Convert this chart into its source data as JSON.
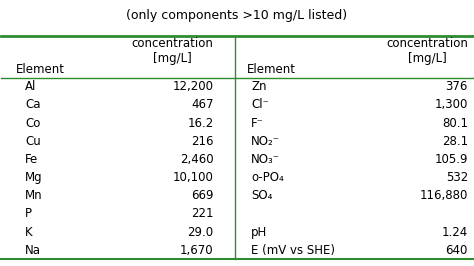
{
  "title": "(only components >10 mg/L listed)",
  "title_fontsize": 9,
  "green_color": "#2e8b2e",
  "left_elements": [
    "Al",
    "Ca",
    "Co",
    "Cu",
    "Fe",
    "Mg",
    "Mn",
    "P",
    "K",
    "Na"
  ],
  "left_values": [
    "12,200",
    "467",
    "16.2",
    "216",
    "2,460",
    "10,100",
    "669",
    "221",
    "29.0",
    "1,670"
  ],
  "right_elements": [
    "Zn",
    "Cl⁻",
    "F⁻",
    "NO₂⁻",
    "NO₃⁻",
    "o-PO₄",
    "SO₄",
    "",
    "pH",
    "E (mV vs SHE)"
  ],
  "right_values": [
    "376",
    "1,300",
    "80.1",
    "28.1",
    "105.9",
    "532",
    "116,880",
    "",
    "1.24",
    "640"
  ],
  "background_color": "#ffffff",
  "text_color": "#000000",
  "font_family": "DejaVu Sans",
  "font_size": 8.5
}
